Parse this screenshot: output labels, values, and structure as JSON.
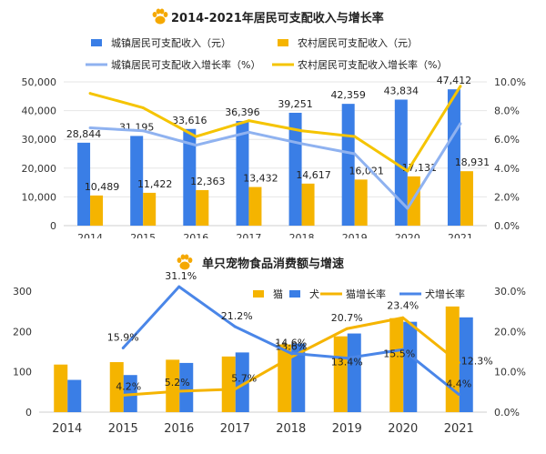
{
  "chart_data": [
    {
      "type": "bar",
      "title": "2014-2021年居民可支配收入与增长率",
      "categories": [
        "2014",
        "2015",
        "2016",
        "2017",
        "2018",
        "2019",
        "2020",
        "2021"
      ],
      "ylim_left": [
        0,
        50000
      ],
      "yticks_left": [
        "0",
        "10,000",
        "20,000",
        "30,000",
        "40,000",
        "50,000"
      ],
      "ylim_right": [
        0,
        10
      ],
      "yticks_right": [
        "0.0%",
        "2.0%",
        "4.0%",
        "6.0%",
        "8.0%",
        "10.0%"
      ],
      "legend_position": "top",
      "series": [
        {
          "name": "城镇居民可支配收入（元）",
          "kind": "bar",
          "axis": "left",
          "color": "#3a7ee6",
          "values": [
            28844,
            31195,
            33616,
            36396,
            39251,
            42359,
            43834,
            47412
          ],
          "labels": [
            "28,844",
            "31,195",
            "33,616",
            "36,396",
            "39,251",
            "42,359",
            "43,834",
            "47,412"
          ]
        },
        {
          "name": "农村居民可支配收入（元）",
          "kind": "bar",
          "axis": "left",
          "color": "#f5b400",
          "values": [
            10489,
            11422,
            12363,
            13432,
            14617,
            16021,
            17131,
            18931
          ],
          "labels": [
            "10,489",
            "11,422",
            "12,363",
            "13,432",
            "14,617",
            "16,021",
            "17,131",
            "18,931"
          ]
        },
        {
          "name": "城镇居民可支配收入增长率（%）",
          "kind": "line",
          "axis": "right",
          "color": "#8fb2f0",
          "values": [
            6.8,
            6.6,
            5.6,
            6.5,
            5.7,
            5.0,
            1.2,
            7.1
          ]
        },
        {
          "name": "农村居民可支配收入增长率（%）",
          "kind": "line",
          "axis": "right",
          "color": "#f5c400",
          "values": [
            9.2,
            8.2,
            6.2,
            7.3,
            6.6,
            6.2,
            3.8,
            9.7
          ]
        }
      ]
    },
    {
      "type": "bar",
      "title": "单只宠物食品消费额与增速",
      "categories": [
        "2014",
        "2015",
        "2016",
        "2017",
        "2018",
        "2019",
        "2020",
        "2021"
      ],
      "ylim_left": [
        0,
        300
      ],
      "yticks_left": [
        "0",
        "100",
        "200",
        "300"
      ],
      "ylim_right": [
        0,
        30
      ],
      "yticks_right": [
        "0.0%",
        "10.0%",
        "20.0%",
        "30.0%"
      ],
      "legend_position": "top-right",
      "series": [
        {
          "name": "猫",
          "kind": "bar",
          "axis": "left",
          "color": "#f5b400",
          "values": [
            118,
            124,
            130,
            138,
            168,
            188,
            233,
            262
          ]
        },
        {
          "name": "犬",
          "kind": "bar",
          "axis": "left",
          "color": "#3a7ee6",
          "values": [
            80,
            92,
            122,
            148,
            170,
            195,
            224,
            235
          ]
        },
        {
          "name": "猫增长率",
          "kind": "line",
          "axis": "right",
          "color": "#f5b400",
          "values": [
            null,
            4.2,
            5.2,
            5.7,
            13.6,
            20.7,
            23.4,
            12.3
          ],
          "labels": [
            "",
            "4.2%",
            "5.2%",
            "5.7%",
            "13.6%",
            "20.7%",
            "23.4%",
            "12.3%"
          ]
        },
        {
          "name": "犬增长率",
          "kind": "line",
          "axis": "right",
          "color": "#4a86e8",
          "values": [
            null,
            15.9,
            31.1,
            21.2,
            14.6,
            13.4,
            15.5,
            4.4
          ],
          "labels": [
            "",
            "15.9%",
            "31.1%",
            "21.2%",
            "14.6%",
            "13.4%",
            "15.5%",
            "4.4%"
          ]
        }
      ]
    }
  ]
}
